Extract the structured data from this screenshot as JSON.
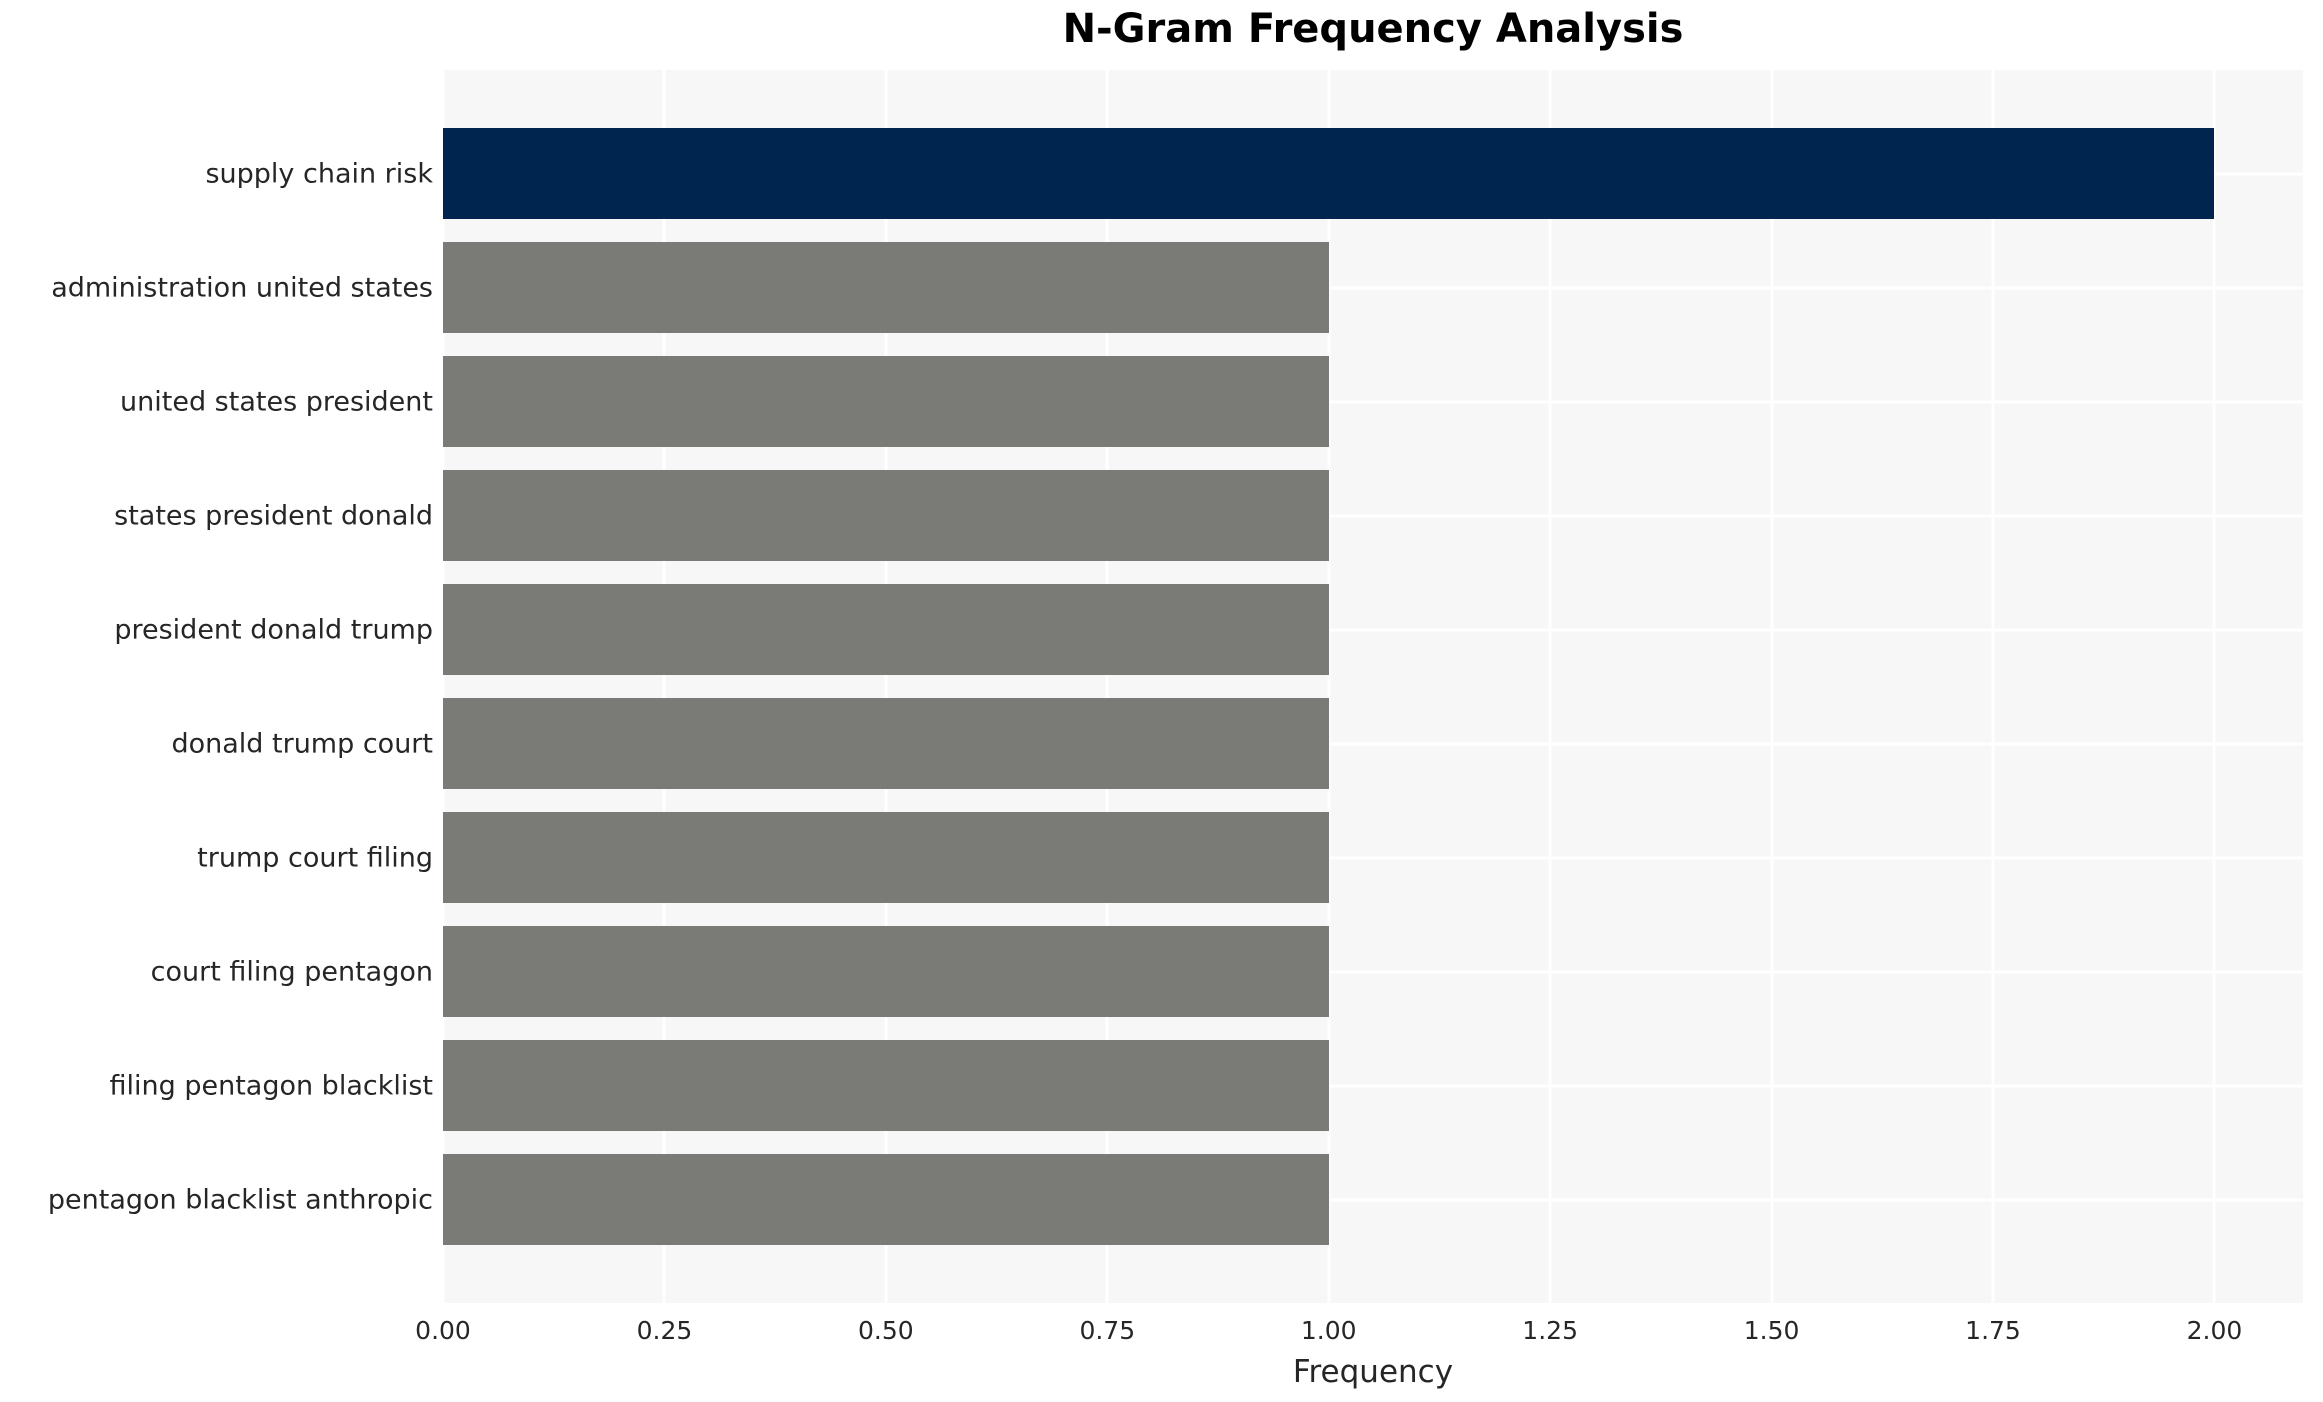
{
  "chart_data": {
    "type": "bar",
    "orientation": "horizontal",
    "title": "N-Gram Frequency Analysis",
    "xlabel": "Frequency",
    "ylabel": "",
    "categories": [
      "supply chain risk",
      "administration united states",
      "united states president",
      "states president donald",
      "president donald trump",
      "donald trump court",
      "trump court filing",
      "court filing pentagon",
      "filing pentagon blacklist",
      "pentagon blacklist anthropic"
    ],
    "values": [
      2,
      1,
      1,
      1,
      1,
      1,
      1,
      1,
      1,
      1
    ],
    "bar_colors": [
      "#00254f",
      "#7a7a76",
      "#7a7a76",
      "#7a7a76",
      "#7a7a76",
      "#7a7a76",
      "#7a7a76",
      "#7a7a76",
      "#7a7a76",
      "#7a7a76"
    ],
    "xlim": [
      0,
      2.1
    ],
    "xticks": [
      {
        "value": 0.0,
        "label": "0.00"
      },
      {
        "value": 0.25,
        "label": "0.25"
      },
      {
        "value": 0.5,
        "label": "0.50"
      },
      {
        "value": 0.75,
        "label": "0.75"
      },
      {
        "value": 1.0,
        "label": "1.00"
      },
      {
        "value": 1.25,
        "label": "1.25"
      },
      {
        "value": 1.5,
        "label": "1.50"
      },
      {
        "value": 1.75,
        "label": "1.75"
      },
      {
        "value": 2.0,
        "label": "2.00"
      }
    ],
    "grid": true,
    "legend_position": "none",
    "colors": {
      "plot_background": "#f7f7f7",
      "grid_line": "#ffffff",
      "highlight_bar": "#00254f",
      "default_bar": "#7a7a76",
      "tick_text": "#262626",
      "title_text": "#000000"
    }
  }
}
